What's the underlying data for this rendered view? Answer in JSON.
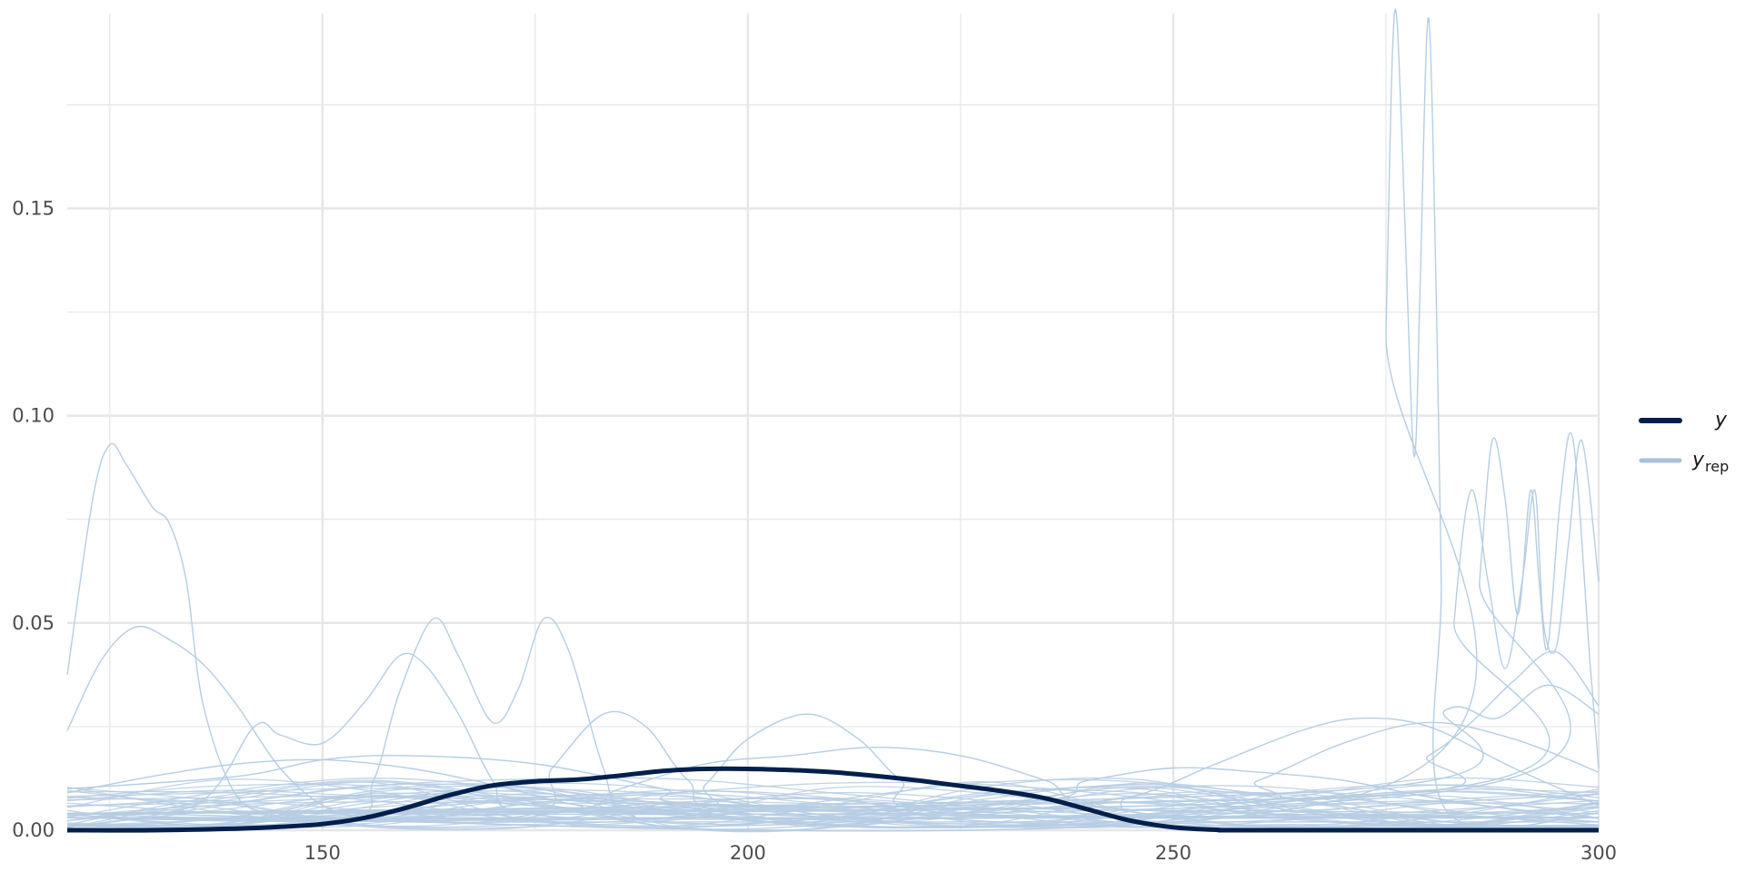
{
  "chart_data": {
    "type": "line",
    "title": "",
    "xlabel": "",
    "ylabel": "",
    "xlim": [
      120,
      300
    ],
    "ylim": [
      0,
      0.197
    ],
    "x_ticks": [
      150,
      200,
      250,
      300
    ],
    "x_tick_labels": [
      "150",
      "200",
      "250",
      "300"
    ],
    "y_ticks": [
      0,
      0.05,
      0.1,
      0.15
    ],
    "y_tick_labels": [
      "0.00",
      "0.05",
      "0.10",
      "0.15"
    ],
    "grid": true,
    "legend": {
      "position": "right",
      "entries": [
        {
          "name": "y",
          "subscript": "",
          "color": "#011f4b"
        },
        {
          "name": "y",
          "subscript": "rep",
          "color": "#a6c1dc"
        }
      ]
    },
    "colors": {
      "y": "#011f4b",
      "yrep": "#b6cde3",
      "grid": "#e6e6e6"
    },
    "series": [
      {
        "name": "y",
        "role": "observed",
        "x": [
          120,
          130,
          140,
          145,
          150,
          155,
          160,
          165,
          170,
          175,
          180,
          185,
          190,
          195,
          200,
          205,
          210,
          215,
          220,
          225,
          230,
          235,
          240,
          245,
          250,
          255,
          260,
          300
        ],
        "values": [
          0,
          0,
          0.0004,
          0.0008,
          0.0015,
          0.003,
          0.0055,
          0.0085,
          0.0108,
          0.0118,
          0.0122,
          0.0132,
          0.0143,
          0.0148,
          0.0148,
          0.0145,
          0.014,
          0.0131,
          0.012,
          0.0107,
          0.0094,
          0.0077,
          0.005,
          0.0023,
          0.0007,
          0.0001,
          0,
          0
        ]
      },
      {
        "name": "yrep_1",
        "role": "replicate",
        "x": [
          120,
          123,
          125,
          127,
          130,
          132,
          134,
          136,
          140,
          145,
          150,
          160,
          180,
          200,
          250,
          300
        ],
        "values": [
          0.0375,
          0.08,
          0.093,
          0.088,
          0.078,
          0.074,
          0.06,
          0.03,
          0.008,
          0.004,
          0.003,
          0.002,
          0.002,
          0.002,
          0.002,
          0.002
        ]
      },
      {
        "name": "yrep_2",
        "role": "replicate",
        "x": [
          120,
          124,
          128,
          132,
          136,
          140,
          145,
          150,
          155,
          160,
          165,
          200,
          250,
          300
        ],
        "values": [
          0.024,
          0.041,
          0.049,
          0.046,
          0.04,
          0.03,
          0.015,
          0.006,
          0.003,
          0.003,
          0.003,
          0.003,
          0.003,
          0.003
        ]
      },
      {
        "name": "yrep_3",
        "role": "replicate",
        "x": [
          120,
          135,
          142,
          145,
          150,
          155,
          159,
          162,
          166,
          170,
          174,
          200,
          300
        ],
        "values": [
          0.004,
          0.006,
          0.025,
          0.023,
          0.021,
          0.031,
          0.042,
          0.04,
          0.028,
          0.012,
          0.004,
          0.003,
          0.003
        ]
      },
      {
        "name": "yrep_4",
        "role": "replicate",
        "x": [
          120,
          152,
          156,
          159,
          163,
          166,
          170,
          173,
          176,
          179,
          183,
          186,
          200,
          300
        ],
        "values": [
          0.003,
          0.003,
          0.012,
          0.033,
          0.051,
          0.042,
          0.026,
          0.034,
          0.051,
          0.043,
          0.015,
          0.004,
          0.003,
          0.003
        ]
      },
      {
        "name": "yrep_5",
        "role": "replicate",
        "x": [
          120,
          172,
          177,
          183,
          188,
          193,
          200,
          250,
          300
        ],
        "values": [
          0.003,
          0.003,
          0.015,
          0.028,
          0.025,
          0.012,
          0.004,
          0.003,
          0.003
        ]
      },
      {
        "name": "yrep_6",
        "role": "replicate",
        "x": [
          120,
          190,
          195,
          200,
          207,
          213,
          218,
          225,
          300
        ],
        "values": [
          0.003,
          0.003,
          0.011,
          0.022,
          0.028,
          0.022,
          0.012,
          0.004,
          0.003
        ]
      },
      {
        "name": "yrep_7",
        "role": "replicate",
        "x": [
          120,
          175,
          185,
          195,
          205,
          215,
          225,
          235,
          245,
          300
        ],
        "values": [
          0.003,
          0.004,
          0.01,
          0.016,
          0.018,
          0.02,
          0.018,
          0.012,
          0.005,
          0.003
        ]
      },
      {
        "name": "yrep_8",
        "role": "replicate",
        "x": [
          120,
          130,
          140,
          150,
          160,
          170,
          180,
          190,
          300
        ],
        "values": [
          0.009,
          0.013,
          0.016,
          0.017,
          0.015,
          0.011,
          0.006,
          0.004,
          0.003
        ]
      },
      {
        "name": "yrep_9",
        "role": "replicate",
        "x": [
          120,
          140,
          150,
          160,
          175,
          190,
          200,
          300
        ],
        "values": [
          0.01,
          0.013,
          0.017,
          0.018,
          0.016,
          0.01,
          0.006,
          0.004
        ]
      },
      {
        "name": "yrep_10",
        "role": "replicate",
        "x": [
          120,
          230,
          245,
          255,
          265,
          272,
          280,
          290,
          300
        ],
        "values": [
          0.003,
          0.003,
          0.008,
          0.016,
          0.024,
          0.027,
          0.025,
          0.015,
          0.006
        ]
      },
      {
        "name": "yrep_11",
        "role": "replicate",
        "x": [
          120,
          250,
          260,
          270,
          280,
          290,
          300
        ],
        "values": [
          0.004,
          0.006,
          0.012,
          0.021,
          0.026,
          0.022,
          0.014
        ]
      },
      {
        "name": "yrep_12",
        "role": "replicate",
        "x": [
          120,
          225,
          240,
          250,
          260,
          270,
          280,
          290,
          300
        ],
        "values": [
          0.004,
          0.006,
          0.012,
          0.015,
          0.014,
          0.012,
          0.008,
          0.005,
          0.003
        ]
      },
      {
        "name": "yrep_13",
        "role": "replicate",
        "x": [
          120,
          274,
          275,
          276,
          277,
          278,
          278.5,
          279,
          280,
          281,
          281.5,
          282,
          300
        ],
        "values": [
          0.004,
          0.01,
          0.12,
          0.197,
          0.16,
          0.1,
          0.093,
          0.13,
          0.196,
          0.12,
          0.06,
          0.005,
          0.004
        ]
      },
      {
        "name": "yrep_14",
        "role": "replicate",
        "x": [
          120,
          282,
          283,
          285,
          287,
          289,
          291,
          292.5,
          293.5,
          295,
          296.5,
          298,
          300
        ],
        "values": [
          0.004,
          0.01,
          0.05,
          0.082,
          0.06,
          0.039,
          0.06,
          0.082,
          0.05,
          0.044,
          0.07,
          0.094,
          0.06
        ]
      },
      {
        "name": "yrep_15",
        "role": "replicate",
        "x": [
          120,
          284,
          286,
          287.5,
          289,
          290.5,
          292,
          293,
          294,
          295.5,
          297,
          299,
          300
        ],
        "values": [
          0.004,
          0.01,
          0.06,
          0.094,
          0.08,
          0.052,
          0.082,
          0.06,
          0.044,
          0.08,
          0.094,
          0.04,
          0.015
        ]
      },
      {
        "name": "yrep_16",
        "role": "replicate",
        "x": [
          120,
          270,
          280,
          285,
          290,
          295,
          300
        ],
        "values": [
          0.004,
          0.008,
          0.018,
          0.026,
          0.036,
          0.043,
          0.03
        ]
      },
      {
        "name": "yrep_17",
        "role": "replicate",
        "x": [
          120,
          272,
          282,
          288,
          294,
          300
        ],
        "values": [
          0.004,
          0.01,
          0.029,
          0.027,
          0.035,
          0.028
        ]
      }
    ],
    "replicate_band": {
      "count": 36,
      "x_start": 120,
      "x_end": 300,
      "base_value": 0.005,
      "spread": 0.005
    }
  }
}
